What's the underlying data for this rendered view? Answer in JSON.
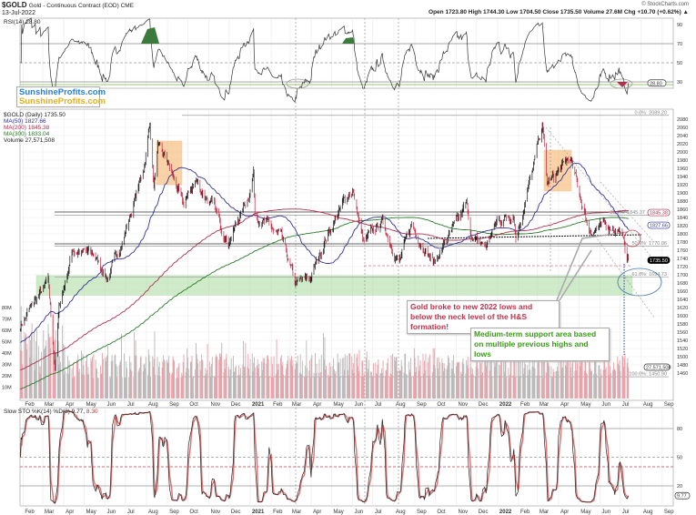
{
  "header": {
    "symbol": "$GOLD",
    "description": "Gold - Continuous Contract (EOD) CME",
    "date": "13-Jul-2022",
    "copyright": "© StockCharts.com",
    "ohlc": "Open 1723.80  High 1744.30  Low 1704.50  Close 1735.50  Volume 27.6M  Chg +10.70 (+0.62%) ▲"
  },
  "branding": {
    "line1": "SunshineProfits.com",
    "line2": "SunshineProfits.com",
    "color1": "#2a7fd4",
    "color2": "#e0b020"
  },
  "chart_data": {
    "type": "candlestick",
    "title": "$GOLD (Daily) 1735.50",
    "legend": [
      "MA(50) 1827.66",
      "MA(200) 1845.38",
      "MA(300) 1833.04",
      "Volume 27,571,508"
    ],
    "price_anchors": [
      [
        "2020-01-28",
        1575
      ],
      [
        "2020-02-20",
        1640
      ],
      [
        "2020-03-09",
        1680
      ],
      [
        "2020-03-19",
        1475
      ],
      [
        "2020-03-25",
        1620
      ],
      [
        "2020-04-14",
        1760
      ],
      [
        "2020-05-15",
        1750
      ],
      [
        "2020-06-05",
        1690
      ],
      [
        "2020-06-30",
        1800
      ],
      [
        "2020-07-28",
        1960
      ],
      [
        "2020-08-06",
        2070
      ],
      [
        "2020-08-12",
        1915
      ],
      [
        "2020-08-18",
        2010
      ],
      [
        "2020-09-01",
        1975
      ],
      [
        "2020-09-24",
        1870
      ],
      [
        "2020-10-12",
        1930
      ],
      [
        "2020-11-09",
        1860
      ],
      [
        "2020-11-30",
        1780
      ],
      [
        "2020-12-30",
        1895
      ],
      [
        "2021-01-06",
        1950
      ],
      [
        "2021-01-08",
        1850
      ],
      [
        "2021-02-16",
        1790
      ],
      [
        "2021-03-08",
        1680
      ],
      [
        "2021-03-31",
        1690
      ],
      [
        "2021-04-20",
        1780
      ],
      [
        "2021-05-20",
        1880
      ],
      [
        "2021-06-01",
        1910
      ],
      [
        "2021-06-17",
        1775
      ],
      [
        "2021-07-14",
        1830
      ],
      [
        "2021-08-09",
        1730
      ],
      [
        "2021-08-27",
        1820
      ],
      [
        "2021-09-29",
        1730
      ],
      [
        "2021-10-22",
        1795
      ],
      [
        "2021-11-16",
        1870
      ],
      [
        "2021-11-25",
        1785
      ],
      [
        "2021-12-15",
        1770
      ],
      [
        "2021-12-31",
        1830
      ],
      [
        "2022-01-25",
        1850
      ],
      [
        "2022-01-28",
        1790
      ],
      [
        "2022-02-24",
        1970
      ],
      [
        "2022-03-08",
        2070
      ],
      [
        "2022-03-15",
        1920
      ],
      [
        "2022-04-18",
        1985
      ],
      [
        "2022-05-16",
        1810
      ],
      [
        "2022-06-13",
        1820
      ],
      [
        "2022-06-30",
        1810
      ],
      [
        "2022-07-13",
        1735.5
      ]
    ],
    "price_axis": {
      "ticks": [
        1460,
        1480,
        1500,
        1520,
        1540,
        1560,
        1580,
        1600,
        1620,
        1640,
        1660,
        1680,
        1700,
        1720,
        1740,
        1760,
        1780,
        1800,
        1820,
        1840,
        1860,
        1880,
        1900,
        1920,
        1940,
        1960,
        1980,
        2000,
        2020,
        2040,
        2060,
        2080
      ]
    },
    "price_markers": [
      {
        "label": "1845.38",
        "color": "#b03050",
        "value": 1845.38
      },
      {
        "label": "1827.66",
        "color": "#333399",
        "value": 1827.66
      },
      {
        "label": "1735.50",
        "color": "#000000",
        "value": 1735.5
      }
    ],
    "volume_axis": {
      "ticks": [
        "10M",
        "20M",
        "30M",
        "40M",
        "50M",
        "60M",
        "70M",
        "80M"
      ],
      "values": [
        10,
        20,
        30,
        40,
        50,
        60,
        70,
        80
      ],
      "marker": "27,571,508"
    },
    "fibonacci": [
      {
        "label": "0.0%: 2089.20",
        "value": 2089.2
      },
      {
        "label": "38.2%: 1845.37",
        "value": 1845.37
      },
      {
        "label": "50.0%: 1770.06",
        "value": 1770.06
      },
      {
        "label": "61.8%: 1694.73",
        "value": 1694.73
      },
      {
        "label": "100.0%: 1450.90",
        "value": 1450.9
      }
    ],
    "support_zone": [
      1650,
      1698
    ],
    "x_axis": {
      "months": [
        [
          "2020-02-01",
          "Feb"
        ],
        [
          "2020-03-01",
          "Mar"
        ],
        [
          "2020-04-01",
          "Apr"
        ],
        [
          "2020-05-01",
          "May"
        ],
        [
          "2020-06-01",
          "Jun"
        ],
        [
          "2020-07-01",
          "Jul"
        ],
        [
          "2020-08-01",
          "Aug"
        ],
        [
          "2020-09-01",
          "Sep"
        ],
        [
          "2020-10-01",
          "Oct"
        ],
        [
          "2020-11-01",
          "Nov"
        ],
        [
          "2020-12-01",
          "Dec"
        ],
        [
          "2021-01-01",
          "2021"
        ],
        [
          "2021-02-01",
          "Feb"
        ],
        [
          "2021-03-01",
          "Mar"
        ],
        [
          "2021-04-01",
          "Apr"
        ],
        [
          "2021-05-01",
          "May"
        ],
        [
          "2021-06-01",
          "Jun"
        ],
        [
          "2021-07-01",
          "Jul"
        ],
        [
          "2021-08-01",
          "Aug"
        ],
        [
          "2021-09-01",
          "Sep"
        ],
        [
          "2021-10-01",
          "Oct"
        ],
        [
          "2021-11-01",
          "Nov"
        ],
        [
          "2021-12-01",
          "Dec"
        ],
        [
          "2022-01-01",
          "2022"
        ],
        [
          "2022-02-01",
          "Feb"
        ],
        [
          "2022-03-01",
          "Mar"
        ],
        [
          "2022-04-01",
          "Apr"
        ],
        [
          "2022-05-01",
          "May"
        ],
        [
          "2022-06-01",
          "Jun"
        ],
        [
          "2022-07-01",
          "Jul"
        ],
        [
          "2022-08-01",
          "Aug"
        ],
        [
          "2022-09-01",
          "Sep"
        ]
      ]
    },
    "rsi": {
      "title": "RSI(14) 28.80",
      "value_label": "28.80",
      "ticks": [
        90,
        70,
        50,
        30
      ]
    },
    "stochastic": {
      "title": "Slow STO %K(14) %D(3) 9.77,",
      "d_value": "8.30",
      "value_label": "9.77",
      "ticks": [
        80,
        50,
        20
      ]
    },
    "annotations": [
      {
        "text": "Gold broke to new 2022 lows and below the neck level of the H&S formation!",
        "color": "#c0304a"
      },
      {
        "text": "Medium-term support area based on multiple previous highs and lows",
        "color": "#3a9a1a"
      }
    ]
  }
}
